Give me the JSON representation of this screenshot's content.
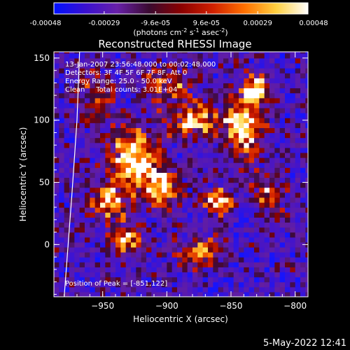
{
  "colorbar": {
    "tick_labels": [
      "-0.00048",
      "-0.00029",
      "-9.6e-05",
      "9.6e-05",
      "0.00029",
      "0.00048"
    ],
    "tick_values": [
      -0.00048,
      -0.00029,
      -9.6e-05,
      9.6e-05,
      0.00029,
      0.00048
    ],
    "range": [
      -0.00048,
      0.00048
    ],
    "unit_label": {
      "prefix": "(photons cm",
      "exp1": "-2",
      "mid1": " s",
      "exp2": "-1",
      "mid2": " asec",
      "exp3": "-2",
      "suffix": ")"
    },
    "colors": [
      "#0010ff",
      "#3a10d0",
      "#6820a8",
      "#3a0a30",
      "#8a0000",
      "#d02000",
      "#ff7000",
      "#ffd040",
      "#ffffff"
    ]
  },
  "chart_data": {
    "type": "heatmap",
    "title": "Reconstructed RHESSI Image",
    "xlabel": "Heliocentric X (arcsec)",
    "ylabel": "Heliocentric Y (arcsec)",
    "xlim": [
      -988,
      -790
    ],
    "ylim": [
      -42,
      155
    ],
    "x_ticks": [
      -950,
      -900,
      -850,
      -800
    ],
    "x_tick_labels": [
      "−950",
      "−900",
      "−850",
      "−800"
    ],
    "y_ticks": [
      0,
      50,
      100,
      150
    ],
    "y_tick_labels": [
      "0",
      "50",
      "100",
      "150"
    ],
    "annotations": [
      "13-Jan-2007 23:56:48.000 to 00:02:48.000",
      "Detectors: 3F 4F 5F 6F 7F 8F, Att 0",
      "Energy Range: 25.0 - 50.0 keV",
      "Clean     Total counts: 3.01E+04"
    ],
    "peak_label": "Position of Peak = [-851,122]",
    "peak": {
      "x": -851,
      "y": 122
    },
    "limb_curve": [
      [
        -968,
        155
      ],
      [
        -970,
        100
      ],
      [
        -974,
        40
      ],
      [
        -980,
        -42
      ]
    ],
    "blobs": [
      {
        "x": -925,
        "y": 70,
        "sx": 18,
        "sy": 22,
        "a": 1.0
      },
      {
        "x": -905,
        "y": 45,
        "sx": 14,
        "sy": 14,
        "a": 0.9
      },
      {
        "x": -860,
        "y": 35,
        "sx": 10,
        "sy": 10,
        "a": 1.0
      },
      {
        "x": -840,
        "y": 95,
        "sx": 15,
        "sy": 25,
        "a": 0.95
      },
      {
        "x": -830,
        "y": 125,
        "sx": 10,
        "sy": 12,
        "a": 0.9
      },
      {
        "x": -880,
        "y": 100,
        "sx": 20,
        "sy": 15,
        "a": 0.7
      },
      {
        "x": -945,
        "y": 35,
        "sx": 14,
        "sy": 14,
        "a": 0.8
      },
      {
        "x": -930,
        "y": 5,
        "sx": 14,
        "sy": 12,
        "a": 0.7
      },
      {
        "x": -875,
        "y": -5,
        "sx": 18,
        "sy": 12,
        "a": 0.7
      },
      {
        "x": -820,
        "y": 40,
        "sx": 12,
        "sy": 14,
        "a": 0.6
      },
      {
        "x": -955,
        "y": 120,
        "sx": 15,
        "sy": 20,
        "a": 0.5
      },
      {
        "x": -900,
        "y": 130,
        "sx": 18,
        "sy": 14,
        "a": 0.55
      }
    ]
  },
  "timestamp": "5-May-2022 12:41"
}
